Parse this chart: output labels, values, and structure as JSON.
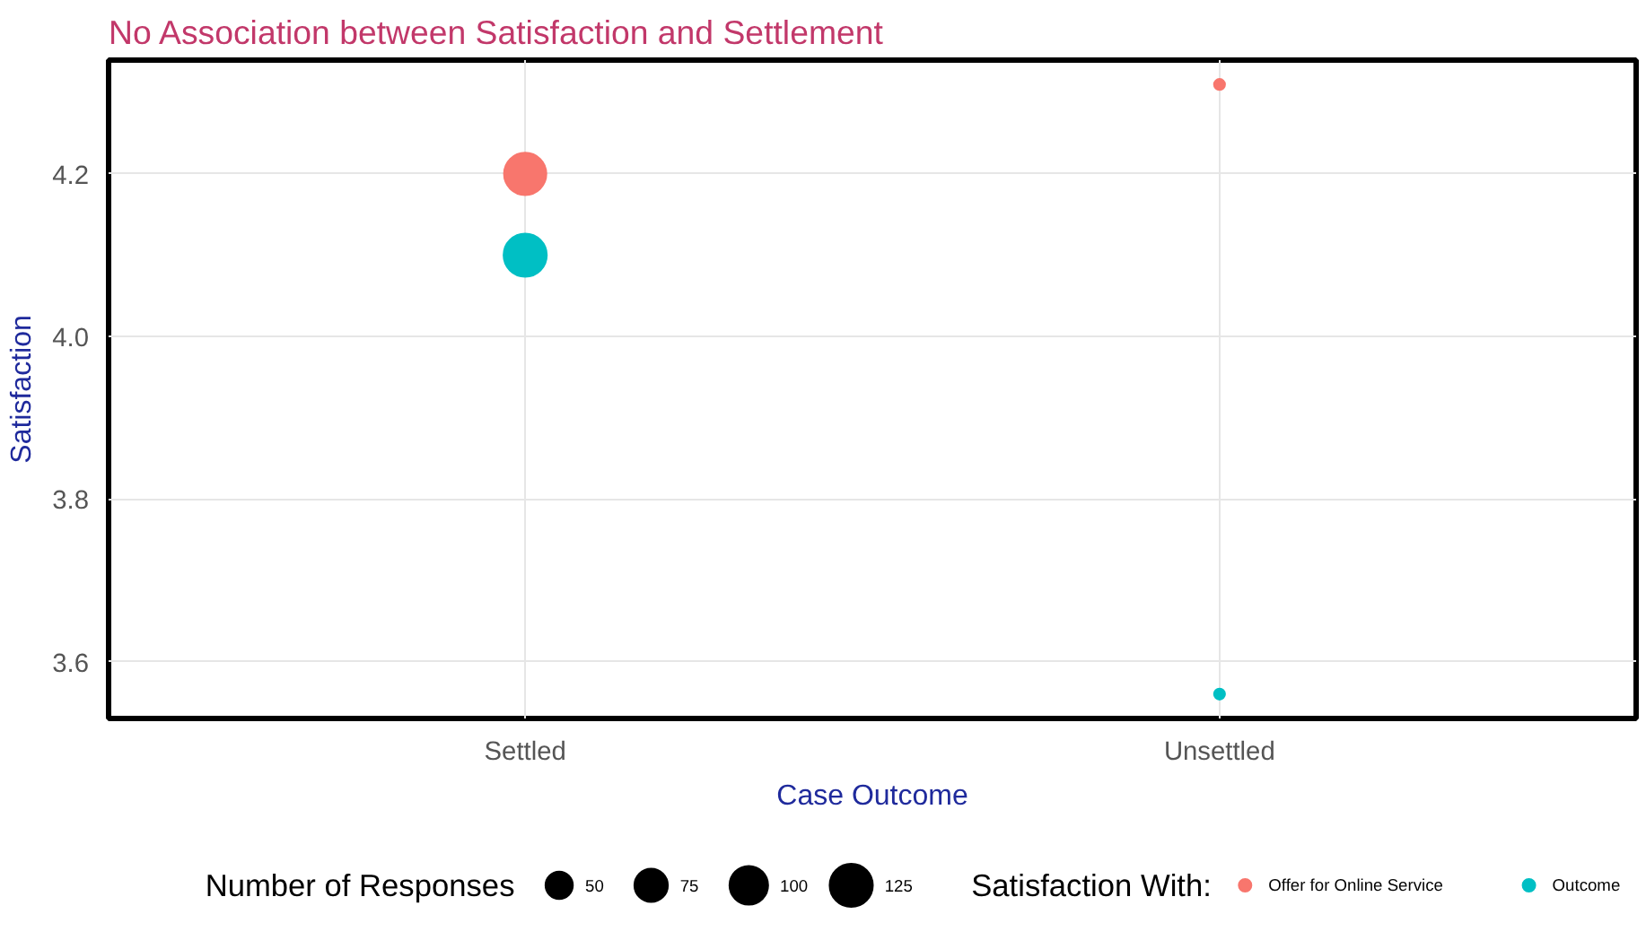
{
  "chart_data": {
    "type": "bubble",
    "title": "No Association between Satisfaction and Settlement",
    "xlabel": "Case Outcome",
    "ylabel": "Satisfaction",
    "categories": [
      "Settled",
      "Unsettled"
    ],
    "series": [
      {
        "name": "Offer for Online Service",
        "color": "#f8766d",
        "values": [
          4.2,
          4.31
        ],
        "sizes": [
          120,
          8
        ]
      },
      {
        "name": "Outcome",
        "color": "#00bfc4",
        "values": [
          4.1,
          3.56
        ],
        "sizes": [
          125,
          8
        ]
      }
    ],
    "size_legend": [
      50,
      75,
      100,
      125
    ],
    "legend_title": "Satisfaction With:",
    "annotations": [
      "Number of Responses"
    ],
    "ylim": [
      3.53,
      4.34
    ],
    "yticks": [
      {
        "value": 3.6,
        "label": "3.6"
      },
      {
        "value": 3.8,
        "label": "3.8"
      },
      {
        "value": 4.0,
        "label": "4.0"
      },
      {
        "value": 4.2,
        "label": "4.2"
      }
    ],
    "grid": true,
    "legend": "bottom",
    "marker": "circle"
  }
}
